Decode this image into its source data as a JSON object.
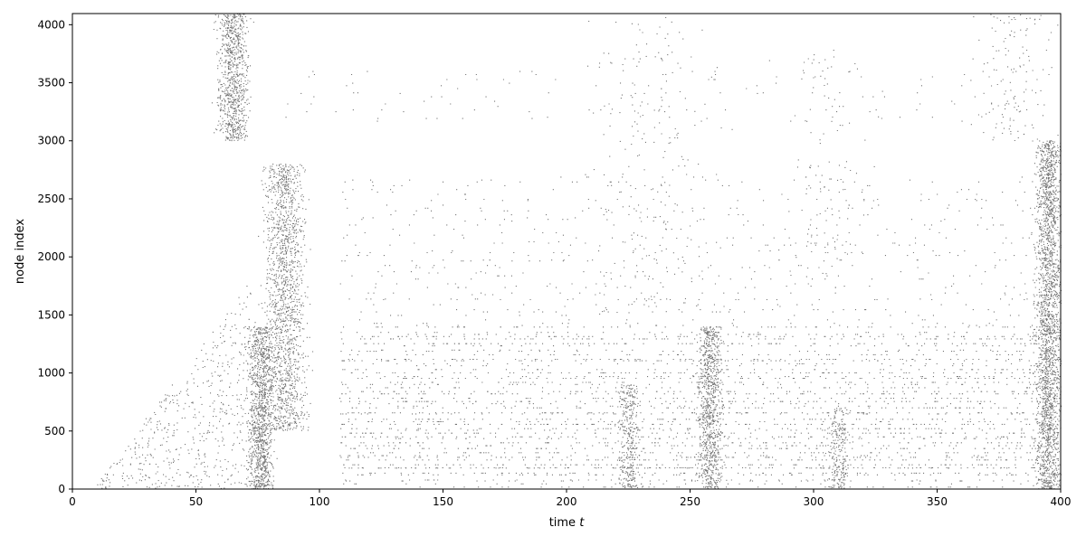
{
  "chart_data": {
    "type": "scatter",
    "title": "",
    "xlabel": "time",
    "xlabel_var": "t",
    "ylabel": "node index",
    "xlim": [
      0,
      400
    ],
    "ylim": [
      0,
      4096
    ],
    "xticks": [
      0,
      50,
      100,
      150,
      200,
      250,
      300,
      350,
      400
    ],
    "yticks": [
      0,
      500,
      1000,
      1500,
      2000,
      2500,
      3000,
      3500,
      4000
    ],
    "grid": false,
    "legend": "none",
    "marker_color": "#000000",
    "row_bands": [
      {
        "y_min": 0,
        "y_max": 1400,
        "t_start": 108,
        "t_end": 400,
        "density": 0.55
      },
      {
        "y_min": 1400,
        "y_max": 2700,
        "t_start": 108,
        "t_end": 400,
        "density": 0.12
      },
      {
        "y_min": 3150,
        "y_max": 3620,
        "t_start": 86,
        "t_end": 400,
        "density": 0.06
      }
    ],
    "bursts": [
      {
        "t_center": 65,
        "t_width": 6,
        "y_min": 3000,
        "y_max": 4096,
        "density": 0.9
      },
      {
        "t_center": 76,
        "t_width": 5,
        "y_min": 0,
        "y_max": 1400,
        "density": 0.95
      },
      {
        "t_center": 86,
        "t_width": 8,
        "y_min": 500,
        "y_max": 2800,
        "density": 0.8
      },
      {
        "t_center": 225,
        "t_width": 4,
        "y_min": 0,
        "y_max": 900,
        "density": 0.4
      },
      {
        "t_center": 258,
        "t_width": 5,
        "y_min": 0,
        "y_max": 1400,
        "density": 0.7
      },
      {
        "t_center": 310,
        "t_width": 4,
        "y_min": 0,
        "y_max": 700,
        "density": 0.35
      },
      {
        "t_center": 395,
        "t_width": 5,
        "y_min": 0,
        "y_max": 3000,
        "density": 0.85
      }
    ],
    "diffuse_clouds": [
      {
        "t_center": 235,
        "t_width": 25,
        "y_min": 1500,
        "y_max": 4096,
        "density": 0.15
      },
      {
        "t_center": 305,
        "t_width": 20,
        "y_min": 1800,
        "y_max": 3800,
        "density": 0.1
      },
      {
        "t_center": 380,
        "t_width": 15,
        "y_min": 3000,
        "y_max": 4096,
        "density": 0.2
      }
    ]
  }
}
